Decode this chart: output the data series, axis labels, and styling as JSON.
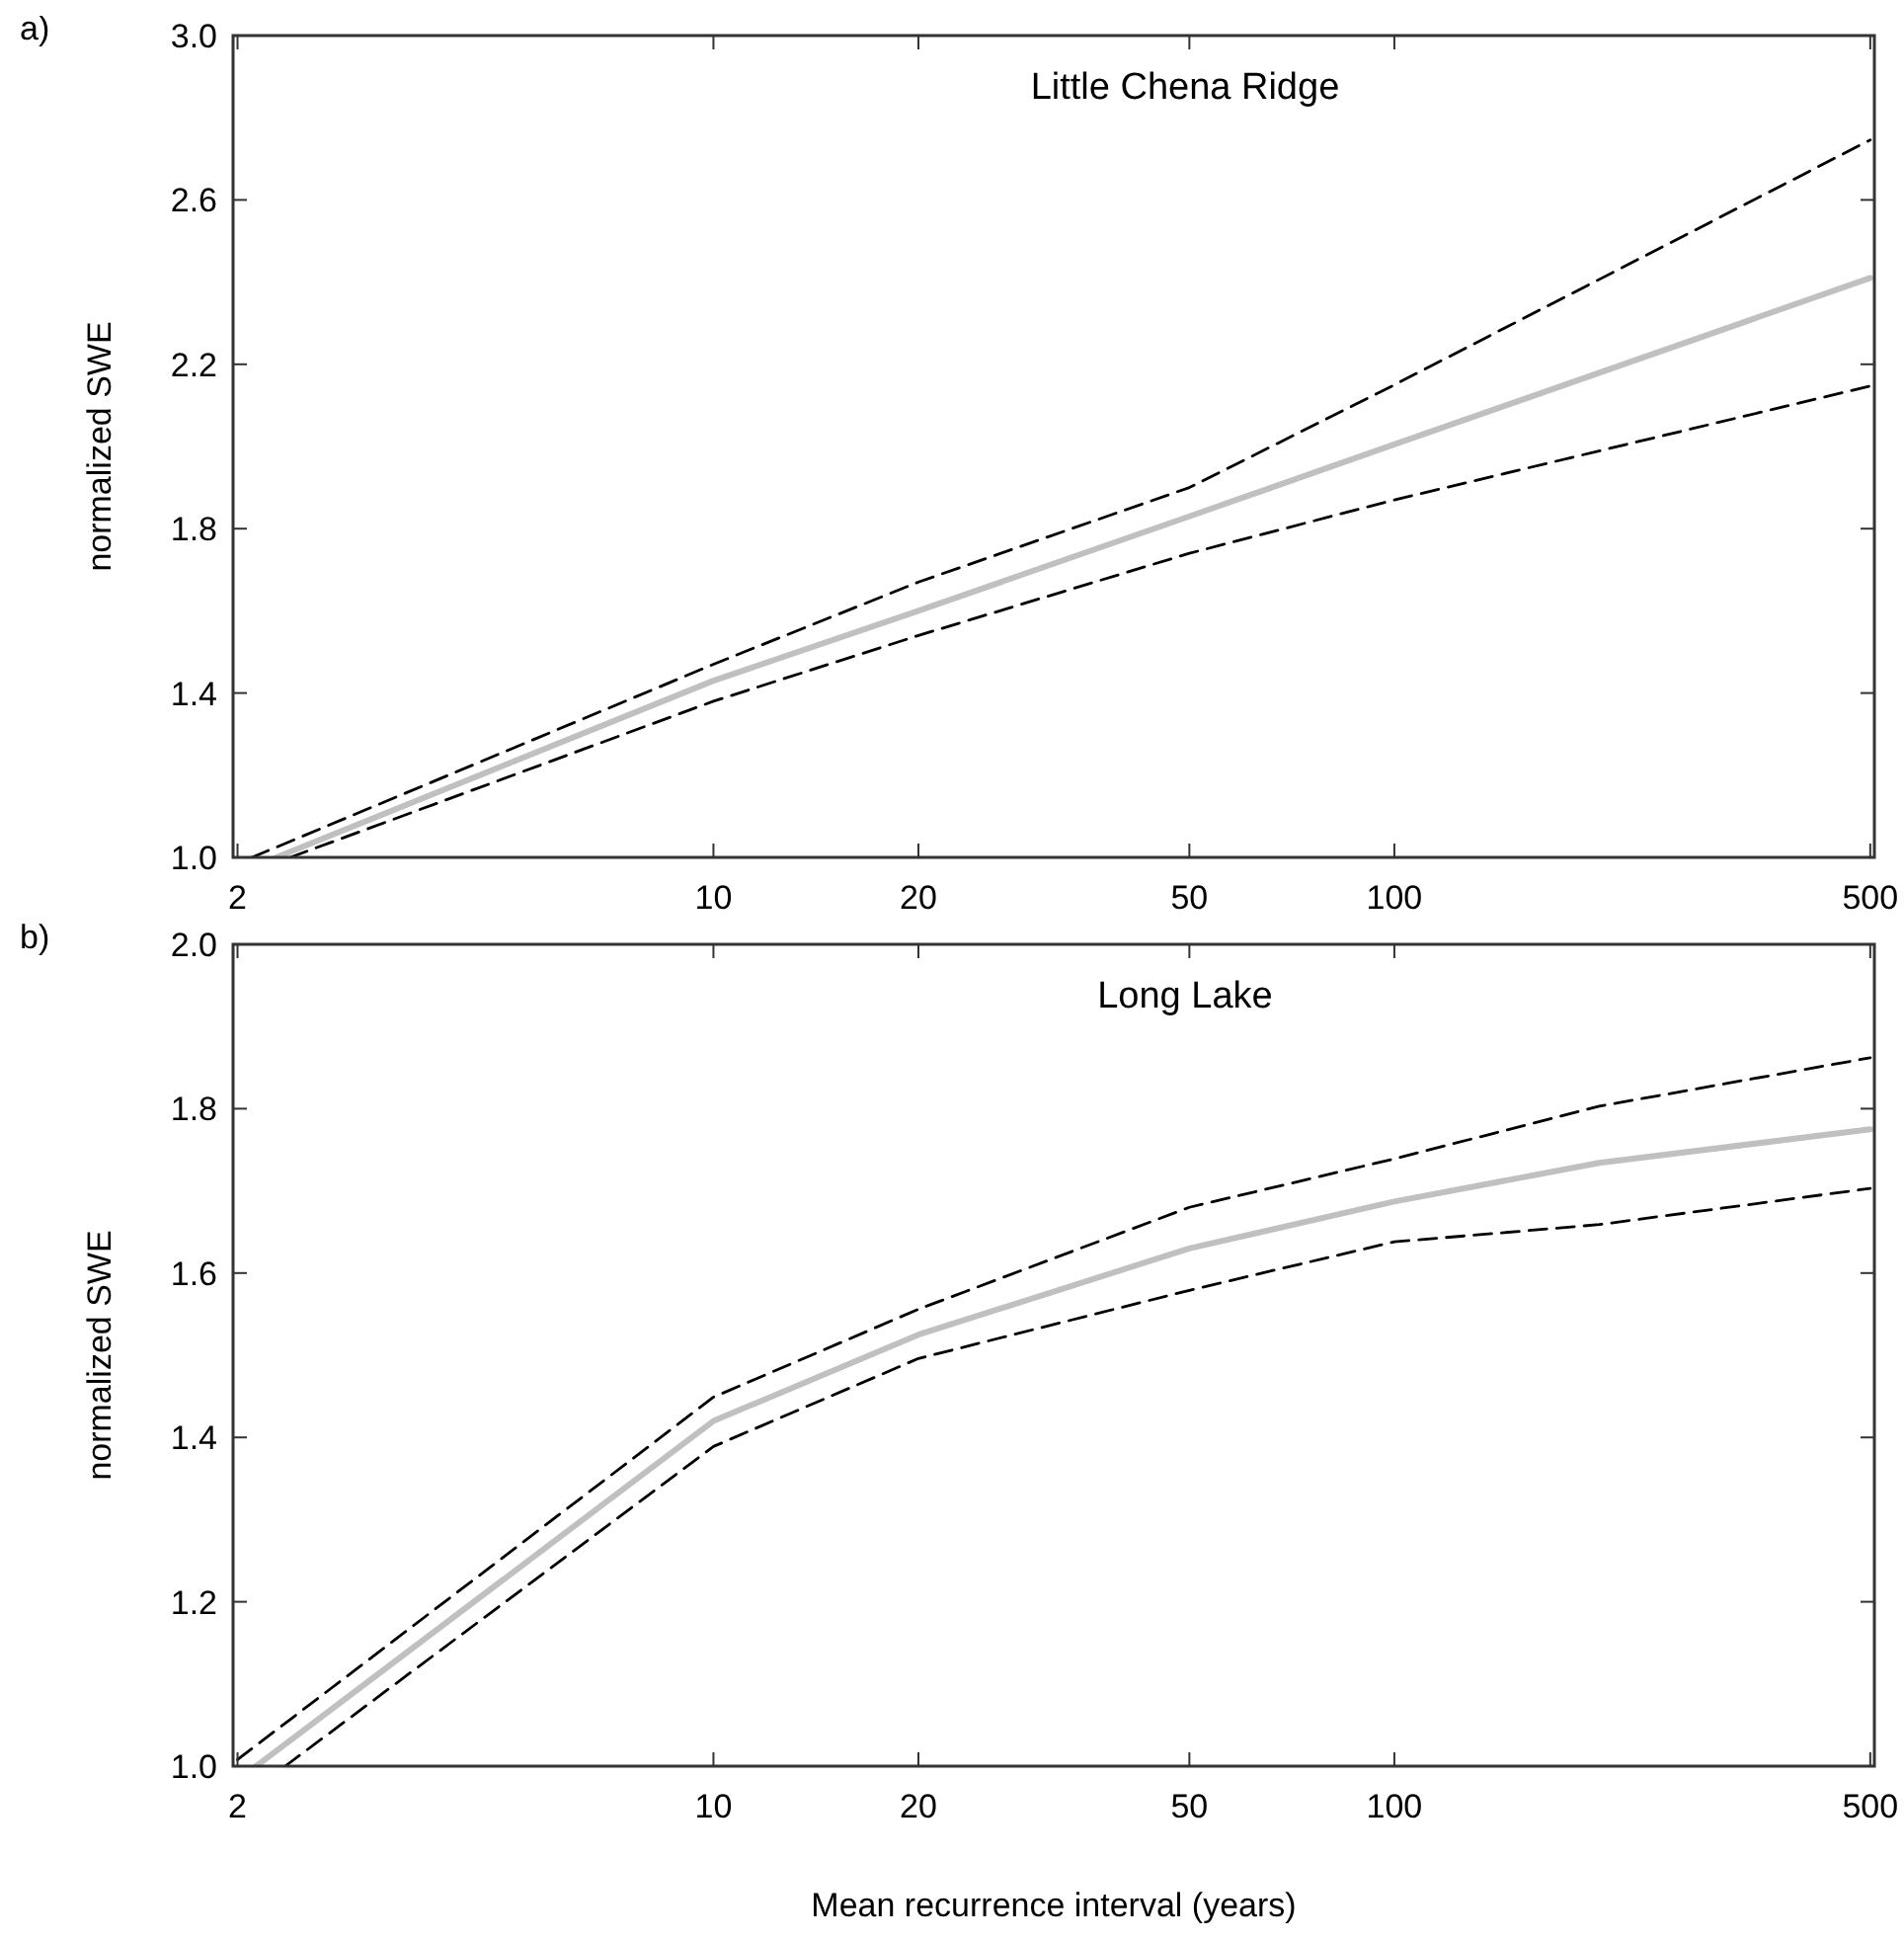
{
  "chart_data": [
    {
      "type": "line",
      "title": "Little Chena Ridge",
      "ylabel": "normalized SWE",
      "annotations": [
        "a)"
      ],
      "log": "x",
      "xlim": [
        1.97,
        507
      ],
      "xticks": [
        2,
        10,
        20,
        50,
        100,
        500
      ],
      "ylim": [
        1.0,
        3.0
      ],
      "yticks": [
        {
          "value": 1.0,
          "label": "1.0"
        },
        1.4,
        1.8,
        2.2,
        2.6,
        {
          "value": 3.0,
          "label": "3.0"
        }
      ],
      "series": [
        {
          "color": "#000000",
          "line_style": "dashed",
          "x": [
            2.1,
            10,
            20,
            50,
            100,
            500
          ],
          "values": [
            1.0,
            1.47,
            1.67,
            1.9,
            2.15,
            2.746
          ]
        },
        {
          "color": "#000000",
          "line_style": "dashed",
          "x": [
            2.39,
            10,
            20,
            50,
            100,
            500
          ],
          "values": [
            1.0,
            1.38,
            1.54,
            1.74,
            1.87,
            2.147
          ]
        },
        {
          "color": "#c0c0c0",
          "line_style": "solid",
          "x": [
            2.28,
            10,
            20,
            50,
            100,
            500
          ],
          "values": [
            1.0,
            1.43,
            1.6,
            1.83,
            2.005,
            2.41
          ]
        }
      ]
    },
    {
      "type": "line",
      "title": "Long Lake",
      "ylabel": "normalized SWE",
      "xlabel": "Mean recurrence interval (years)",
      "annotations": [
        "b)"
      ],
      "log": "x",
      "xlim": [
        1.97,
        507
      ],
      "xticks": [
        2,
        10,
        20,
        50,
        100,
        500
      ],
      "ylim": [
        1.0,
        2.0
      ],
      "yticks": [
        {
          "value": 1.0,
          "label": "1.0"
        },
        1.2,
        1.4,
        1.6,
        1.8,
        {
          "value": 2.0,
          "label": "2.0"
        }
      ],
      "series": [
        {
          "color": "#000000",
          "line_style": "dashed",
          "x": [
            2,
            10,
            20,
            50,
            100,
            200,
            500
          ],
          "values": [
            1.008,
            1.449,
            1.556,
            1.68,
            1.739,
            1.803,
            1.862
          ]
        },
        {
          "color": "#000000",
          "line_style": "dashed",
          "x": [
            2.35,
            10,
            20,
            50,
            100,
            200,
            500
          ],
          "values": [
            1.0,
            1.389,
            1.496,
            1.579,
            1.638,
            1.659,
            1.703
          ]
        },
        {
          "color": "#c0c0c0",
          "line_style": "solid",
          "x": [
            2.13,
            10,
            20,
            50,
            100,
            200,
            500
          ],
          "values": [
            1.0,
            1.42,
            1.525,
            1.63,
            1.687,
            1.734,
            1.775
          ]
        }
      ]
    }
  ]
}
